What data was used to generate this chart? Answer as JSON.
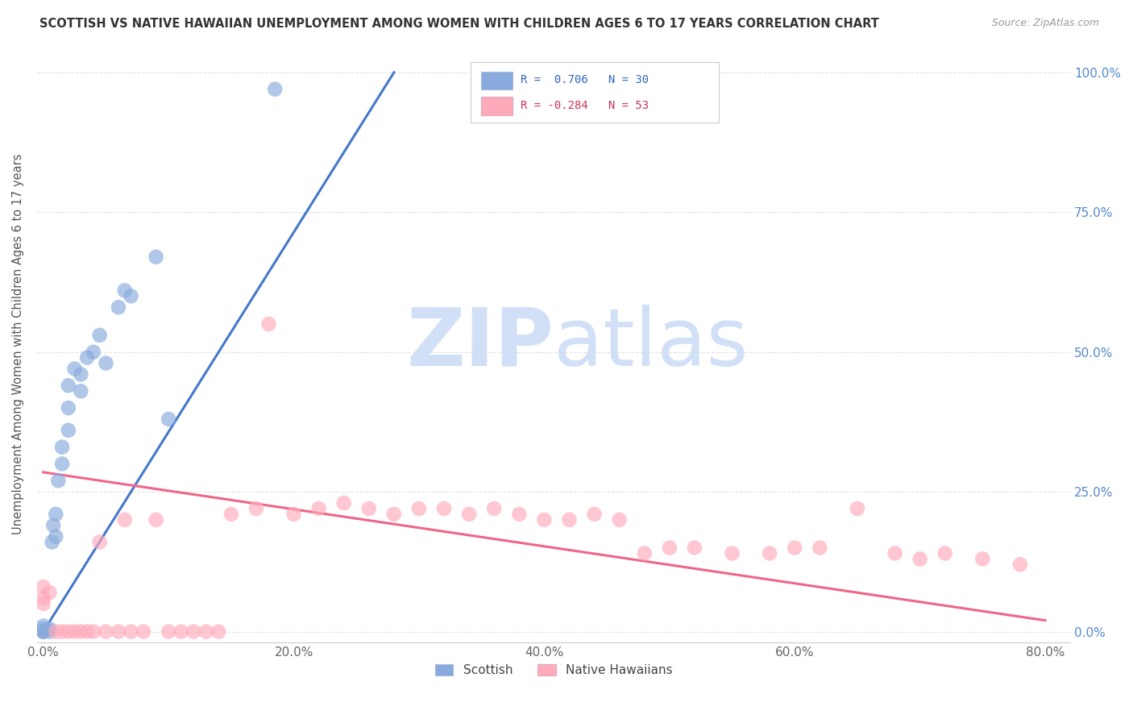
{
  "title": "SCOTTISH VS NATIVE HAWAIIAN UNEMPLOYMENT AMONG WOMEN WITH CHILDREN AGES 6 TO 17 YEARS CORRELATION CHART",
  "source": "Source: ZipAtlas.com",
  "ylabel": "Unemployment Among Women with Children Ages 6 to 17 years",
  "xlim": [
    -0.005,
    0.82
  ],
  "ylim": [
    -0.02,
    1.05
  ],
  "xtick_vals": [
    0.0,
    0.2,
    0.4,
    0.6,
    0.8
  ],
  "xtick_labels": [
    "0.0%",
    "20.0%",
    "40.0%",
    "60.0%",
    "80.0%"
  ],
  "ytick_vals": [
    0.0,
    0.25,
    0.5,
    0.75,
    1.0
  ],
  "ytick_labels": [
    "0.0%",
    "25.0%",
    "50.0%",
    "75.0%",
    "100.0%"
  ],
  "scottish_R": 0.706,
  "scottish_N": 30,
  "hawaiian_R": -0.284,
  "hawaiian_N": 53,
  "scottish_color": "#88AADD",
  "hawaiian_color": "#FFAABB",
  "line_blue": "#4477CC",
  "line_pink": "#EE6688",
  "watermark_color": "#CCDDF5",
  "background_color": "#FFFFFF",
  "scottish_x": [
    0.0,
    0.0,
    0.0,
    0.0,
    0.0,
    0.005,
    0.005,
    0.007,
    0.008,
    0.01,
    0.01,
    0.012,
    0.015,
    0.015,
    0.02,
    0.02,
    0.02,
    0.025,
    0.03,
    0.03,
    0.035,
    0.04,
    0.045,
    0.05,
    0.06,
    0.065,
    0.07,
    0.09,
    0.1,
    0.185
  ],
  "scottish_y": [
    0.0,
    0.0,
    0.0,
    0.005,
    0.01,
    0.0,
    0.005,
    0.16,
    0.19,
    0.17,
    0.21,
    0.27,
    0.3,
    0.33,
    0.36,
    0.4,
    0.44,
    0.47,
    0.43,
    0.46,
    0.49,
    0.5,
    0.53,
    0.48,
    0.58,
    0.61,
    0.6,
    0.67,
    0.38,
    0.97
  ],
  "hawaiian_x": [
    0.0,
    0.0,
    0.0,
    0.005,
    0.01,
    0.015,
    0.02,
    0.025,
    0.03,
    0.035,
    0.04,
    0.045,
    0.05,
    0.06,
    0.065,
    0.07,
    0.08,
    0.09,
    0.1,
    0.11,
    0.12,
    0.13,
    0.14,
    0.15,
    0.17,
    0.18,
    0.2,
    0.22,
    0.24,
    0.26,
    0.28,
    0.3,
    0.32,
    0.34,
    0.36,
    0.38,
    0.4,
    0.42,
    0.44,
    0.46,
    0.48,
    0.5,
    0.52,
    0.55,
    0.58,
    0.6,
    0.62,
    0.65,
    0.68,
    0.7,
    0.72,
    0.75,
    0.78
  ],
  "hawaiian_y": [
    0.05,
    0.06,
    0.08,
    0.07,
    0.0,
    0.0,
    0.0,
    0.0,
    0.0,
    0.0,
    0.0,
    0.16,
    0.0,
    0.0,
    0.2,
    0.0,
    0.0,
    0.2,
    0.0,
    0.0,
    0.0,
    0.0,
    0.0,
    0.21,
    0.22,
    0.55,
    0.21,
    0.22,
    0.23,
    0.22,
    0.21,
    0.22,
    0.22,
    0.21,
    0.22,
    0.21,
    0.2,
    0.2,
    0.21,
    0.2,
    0.14,
    0.15,
    0.15,
    0.14,
    0.14,
    0.15,
    0.15,
    0.22,
    0.14,
    0.13,
    0.14,
    0.13,
    0.12
  ],
  "blue_line_x": [
    0.0,
    0.28
  ],
  "blue_line_y": [
    0.0,
    1.0
  ],
  "pink_line_x": [
    0.0,
    0.8
  ],
  "pink_line_y": [
    0.285,
    0.02
  ]
}
